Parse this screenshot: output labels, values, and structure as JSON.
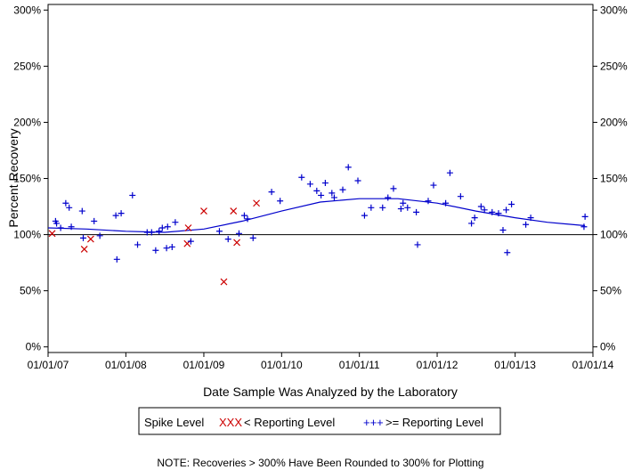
{
  "chart_data": {
    "type": "scatter",
    "title": "",
    "xlabel": "Date Sample Was Analyzed by the Laboratory",
    "ylabel": "Percent Recovery",
    "x_axis": {
      "kind": "date",
      "range": [
        "2007-01-01",
        "2014-01-01"
      ],
      "tick_values": [
        "2007-01-01",
        "2008-01-01",
        "2009-01-01",
        "2010-01-01",
        "2011-01-01",
        "2012-01-01",
        "2013-01-01",
        "2014-01-01"
      ],
      "tick_labels": [
        "01/01/07",
        "01/01/08",
        "01/01/09",
        "01/01/10",
        "01/01/11",
        "01/01/12",
        "01/01/13",
        "01/01/14"
      ]
    },
    "y_axis": {
      "range": [
        -5,
        305
      ],
      "tick_values": [
        0,
        50,
        100,
        150,
        200,
        250,
        300
      ],
      "tick_labels": [
        "0%",
        "50%",
        "100%",
        "150%",
        "200%",
        "250%",
        "300%"
      ],
      "mirrored_right": true
    },
    "reference_line": 100,
    "grid": false,
    "legend": {
      "placement": "bottom",
      "title": "Spike Level",
      "below_symbol": "XXX",
      "below_label": "< Reporting Level",
      "above_symbol": "+++",
      "above_label": ">= Reporting Level"
    },
    "note": "NOTE: Recoveries > 300% Have Been Rounded to 300% for Plotting",
    "colors": {
      "below": "#cc0000",
      "above": "#0000cc",
      "trend": "#0000cc",
      "axis": "#000000"
    },
    "series": [
      {
        "name": "< Reporting Level",
        "marker": "x",
        "points": [
          {
            "x": "2007-01-20",
            "y": 101
          },
          {
            "x": "2007-06-20",
            "y": 87
          },
          {
            "x": "2007-07-20",
            "y": 96
          },
          {
            "x": "2008-10-15",
            "y": 92
          },
          {
            "x": "2008-10-20",
            "y": 106
          },
          {
            "x": "2009-01-01",
            "y": 121
          },
          {
            "x": "2009-04-05",
            "y": 58
          },
          {
            "x": "2009-05-20",
            "y": 121
          },
          {
            "x": "2009-06-05",
            "y": 93
          },
          {
            "x": "2009-09-05",
            "y": 128
          }
        ]
      },
      {
        "name": ">= Reporting Level",
        "marker": "+",
        "points": [
          {
            "x": "2007-02-05",
            "y": 112
          },
          {
            "x": "2007-02-10",
            "y": 110
          },
          {
            "x": "2007-03-01",
            "y": 106
          },
          {
            "x": "2007-03-25",
            "y": 128
          },
          {
            "x": "2007-04-10",
            "y": 124
          },
          {
            "x": "2007-04-20",
            "y": 107
          },
          {
            "x": "2007-06-10",
            "y": 121
          },
          {
            "x": "2007-06-15",
            "y": 97
          },
          {
            "x": "2007-08-05",
            "y": 112
          },
          {
            "x": "2007-09-01",
            "y": 99
          },
          {
            "x": "2007-11-15",
            "y": 117
          },
          {
            "x": "2007-11-20",
            "y": 78
          },
          {
            "x": "2007-12-10",
            "y": 119
          },
          {
            "x": "2008-02-01",
            "y": 135
          },
          {
            "x": "2008-02-25",
            "y": 91
          },
          {
            "x": "2008-04-10",
            "y": 102
          },
          {
            "x": "2008-05-01",
            "y": 102
          },
          {
            "x": "2008-05-20",
            "y": 86
          },
          {
            "x": "2008-06-05",
            "y": 103
          },
          {
            "x": "2008-06-20",
            "y": 106
          },
          {
            "x": "2008-07-10",
            "y": 88
          },
          {
            "x": "2008-07-15",
            "y": 107
          },
          {
            "x": "2008-08-05",
            "y": 89
          },
          {
            "x": "2008-08-20",
            "y": 111
          },
          {
            "x": "2008-11-01",
            "y": 94
          },
          {
            "x": "2009-03-15",
            "y": 103
          },
          {
            "x": "2009-04-25",
            "y": 96
          },
          {
            "x": "2009-06-15",
            "y": 101
          },
          {
            "x": "2009-07-10",
            "y": 117
          },
          {
            "x": "2009-07-25",
            "y": 114
          },
          {
            "x": "2009-08-20",
            "y": 97
          },
          {
            "x": "2009-11-15",
            "y": 138
          },
          {
            "x": "2009-12-25",
            "y": 130
          },
          {
            "x": "2010-04-05",
            "y": 151
          },
          {
            "x": "2010-05-15",
            "y": 145
          },
          {
            "x": "2010-06-15",
            "y": 139
          },
          {
            "x": "2010-07-05",
            "y": 135
          },
          {
            "x": "2010-07-25",
            "y": 146
          },
          {
            "x": "2010-08-25",
            "y": 137
          },
          {
            "x": "2010-09-05",
            "y": 133
          },
          {
            "x": "2010-10-15",
            "y": 140
          },
          {
            "x": "2010-11-10",
            "y": 160
          },
          {
            "x": "2010-12-25",
            "y": 148
          },
          {
            "x": "2011-01-25",
            "y": 117
          },
          {
            "x": "2011-02-25",
            "y": 124
          },
          {
            "x": "2011-04-20",
            "y": 124
          },
          {
            "x": "2011-05-15",
            "y": 133
          },
          {
            "x": "2011-06-10",
            "y": 141
          },
          {
            "x": "2011-07-15",
            "y": 123
          },
          {
            "x": "2011-07-25",
            "y": 128
          },
          {
            "x": "2011-08-15",
            "y": 124
          },
          {
            "x": "2011-09-25",
            "y": 120
          },
          {
            "x": "2011-10-01",
            "y": 91
          },
          {
            "x": "2011-11-20",
            "y": 130
          },
          {
            "x": "2011-12-15",
            "y": 144
          },
          {
            "x": "2012-02-10",
            "y": 128
          },
          {
            "x": "2012-03-01",
            "y": 155
          },
          {
            "x": "2012-04-20",
            "y": 134
          },
          {
            "x": "2012-06-10",
            "y": 110
          },
          {
            "x": "2012-06-25",
            "y": 115
          },
          {
            "x": "2012-07-25",
            "y": 125
          },
          {
            "x": "2012-08-10",
            "y": 122
          },
          {
            "x": "2012-09-15",
            "y": 120
          },
          {
            "x": "2012-10-15",
            "y": 119
          },
          {
            "x": "2012-11-05",
            "y": 104
          },
          {
            "x": "2012-11-20",
            "y": 122
          },
          {
            "x": "2012-11-25",
            "y": 84
          },
          {
            "x": "2012-12-15",
            "y": 127
          },
          {
            "x": "2013-02-20",
            "y": 109
          },
          {
            "x": "2013-03-15",
            "y": 115
          },
          {
            "x": "2013-11-20",
            "y": 107
          },
          {
            "x": "2013-11-25",
            "y": 116
          }
        ]
      },
      {
        "name": "trend",
        "style": "line",
        "points": [
          {
            "x": "2007-01-01",
            "y": 106
          },
          {
            "x": "2007-07-01",
            "y": 105
          },
          {
            "x": "2008-01-01",
            "y": 103
          },
          {
            "x": "2008-07-01",
            "y": 102
          },
          {
            "x": "2009-01-01",
            "y": 105
          },
          {
            "x": "2009-07-01",
            "y": 112
          },
          {
            "x": "2010-01-01",
            "y": 121
          },
          {
            "x": "2010-07-01",
            "y": 129
          },
          {
            "x": "2011-01-01",
            "y": 132
          },
          {
            "x": "2011-07-01",
            "y": 132
          },
          {
            "x": "2012-01-01",
            "y": 128
          },
          {
            "x": "2012-07-01",
            "y": 121
          },
          {
            "x": "2013-01-01",
            "y": 115
          },
          {
            "x": "2013-06-01",
            "y": 111
          },
          {
            "x": "2013-11-25",
            "y": 108
          }
        ]
      }
    ]
  }
}
